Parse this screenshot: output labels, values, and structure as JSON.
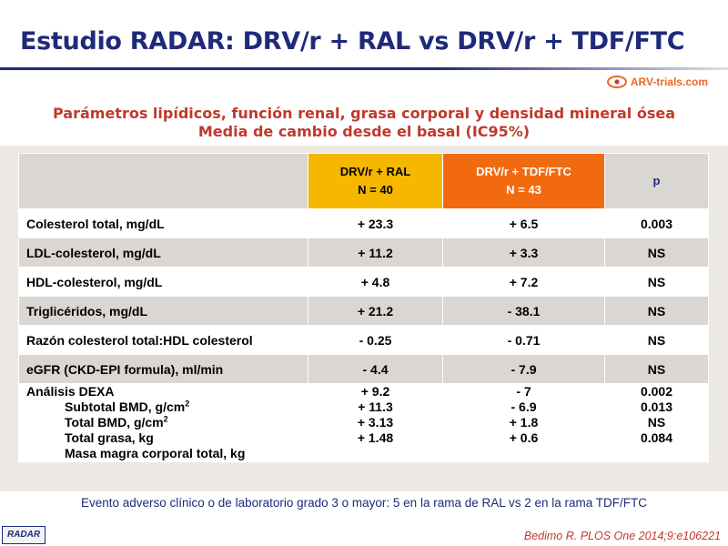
{
  "title": "Estudio RADAR: DRV/r + RAL vs DRV/r + TDF/FTC",
  "brand": "ARV-trials.com",
  "subtitle_line1": "Parámetros lipídicos, función renal, grasa corporal y densidad mineral ósea",
  "subtitle_line2": "Media de cambio desde el basal (IC95%)",
  "table": {
    "headers": {
      "ral_line1": "DRV/r + RAL",
      "ral_line2": "N = 40",
      "tdf_line1": "DRV/r + TDF/FTC",
      "tdf_line2": "N = 43",
      "p": "p"
    },
    "rows": [
      {
        "label": "Colesterol total, mg/dL",
        "ral": "+ 23.3",
        "tdf": "+ 6.5",
        "p": "0.003"
      },
      {
        "label": "LDL-colesterol, mg/dL",
        "ral": "+ 11.2",
        "tdf": "+ 3.3",
        "p": "NS"
      },
      {
        "label": "HDL-colesterol, mg/dL",
        "ral": "+ 4.8",
        "tdf": "+ 7.2",
        "p": "NS"
      },
      {
        "label": "Triglicéridos, mg/dL",
        "ral": "+ 21.2",
        "tdf": "- 38.1",
        "p": "NS"
      },
      {
        "label": "Razón colesterol total:HDL colesterol",
        "ral": "- 0.25",
        "tdf": "- 0.71",
        "p": "NS"
      },
      {
        "label": "eGFR (CKD-EPI formula), ml/min",
        "ral": "- 4.4",
        "tdf": "- 7.9",
        "p": "NS"
      }
    ],
    "dexa": {
      "heading": "Análisis DEXA",
      "sub_labels": [
        "Subtotal BMD, g/cm",
        "Total BMD, g/cm",
        "Total grasa, kg",
        "Masa magra corporal total, kg"
      ],
      "superscript": "2",
      "ral": [
        "+ 9.2",
        "+ 11.3",
        "+ 3.13",
        "+ 1.48"
      ],
      "tdf": [
        "- 7",
        "- 6.9",
        "+ 1.8",
        "+ 0.6"
      ],
      "p": [
        "0.002",
        "0.013",
        "NS",
        "0.084"
      ]
    }
  },
  "footnote": "Evento adverso clínico o de laboratorio grado 3 o mayor: 5 en la rama de RAL vs 2 en la rama TDF/FTC",
  "badge": "RADAR",
  "citation": "Bedimo R. PLOS One 2014;9:e106221",
  "colors": {
    "title": "#1f2a7a",
    "accent_red": "#c0392b",
    "ral_header": "#f5b700",
    "tdf_header": "#f26a10"
  }
}
